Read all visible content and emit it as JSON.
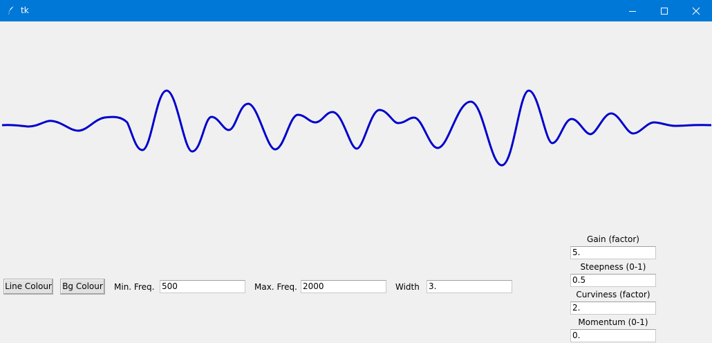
{
  "window": {
    "title": "tk",
    "icon": "feather-icon",
    "controls": [
      "minimize-icon",
      "maximize-icon",
      "close-icon"
    ],
    "accent": "#0078d7"
  },
  "canvas": {
    "line_color": "#0000cd",
    "bg_color": "#f0f0f0"
  },
  "toolbar": {
    "line_colour_label": "Line Colour",
    "bg_colour_label": "Bg Colour",
    "min_freq_label": "Min. Freq.",
    "min_freq_value": "500",
    "max_freq_label": "Max. Freq.",
    "max_freq_value": "2000",
    "width_label": "Width",
    "width_value": "3."
  },
  "params": {
    "gain_label": "Gain (factor)",
    "gain_value": "5.",
    "steepness_label": "Steepness (0-1)",
    "steepness_value": "0.5",
    "curviness_label": "Curviness (factor)",
    "curviness_value": "2.",
    "momentum_label": "Momentum (0-1)",
    "momentum_value": "0."
  }
}
